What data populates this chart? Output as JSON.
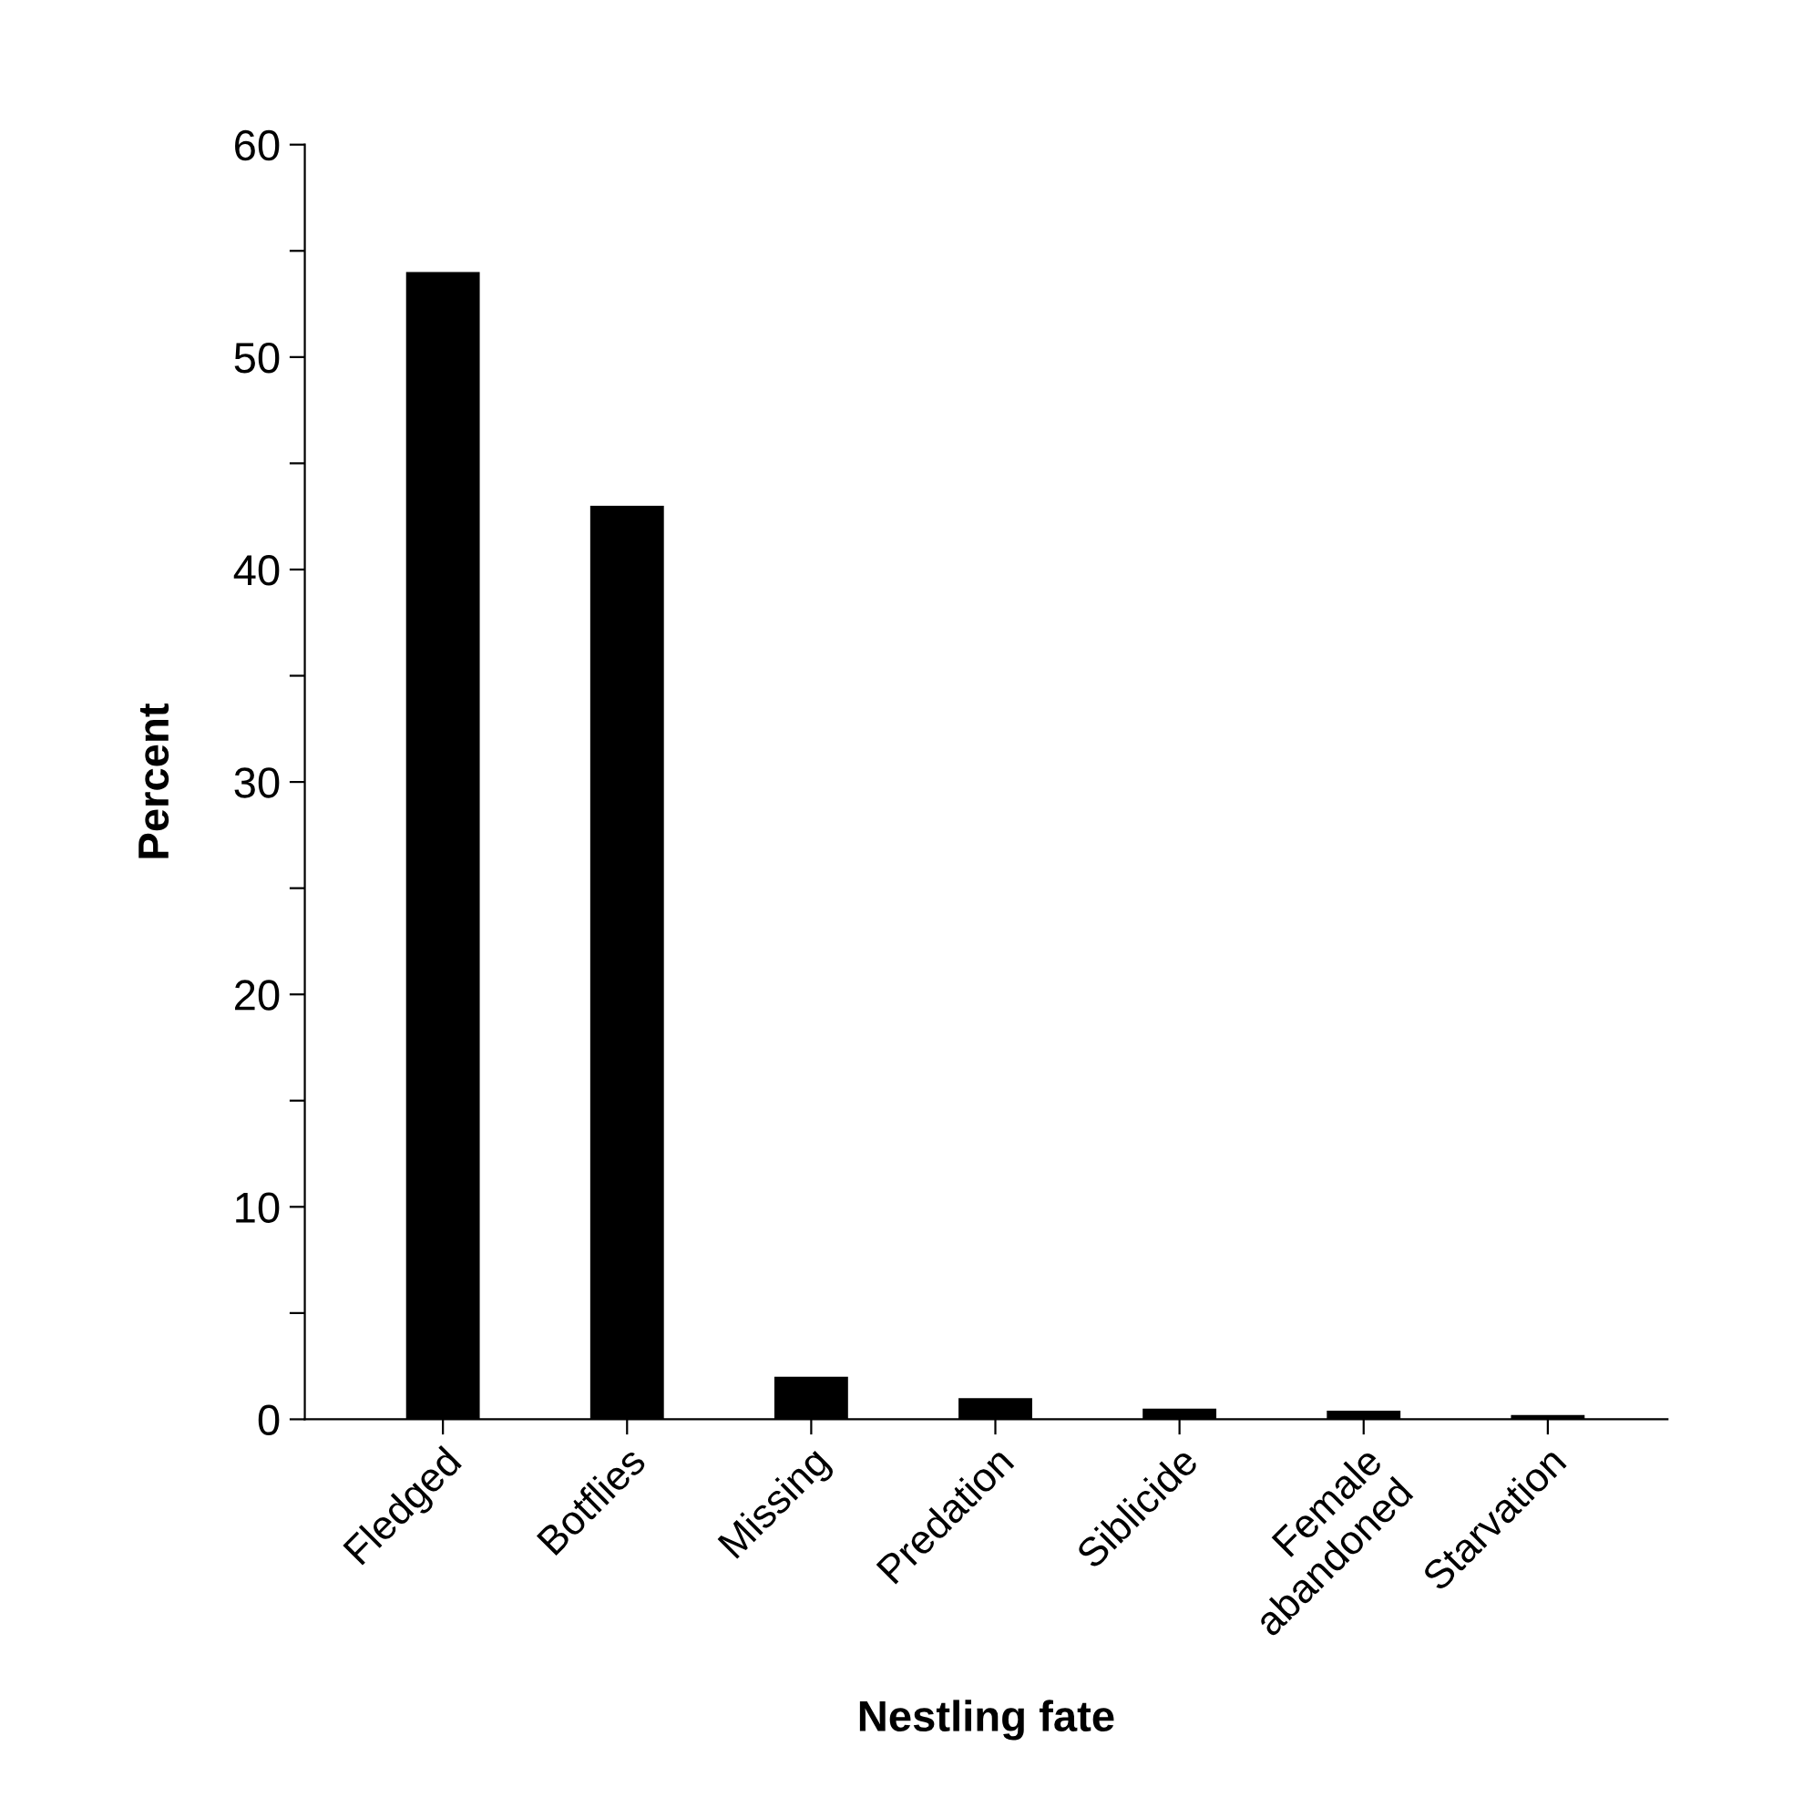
{
  "chart_data": {
    "type": "bar",
    "xlabel": "Nestling fate",
    "ylabel": "Percent",
    "categories": [
      "Fledged",
      "Botflies",
      "Missing",
      "Predation",
      "Siblicide",
      "Female\nabandoned",
      "Starvation"
    ],
    "values": [
      54,
      43,
      2,
      1,
      0.5,
      0.4,
      0.2
    ],
    "color": "#000000",
    "ylim": [
      0,
      60
    ],
    "yticks": [
      0,
      {
        "value": 5,
        "label": null
      },
      10,
      {
        "value": 15,
        "label": null
      },
      20,
      {
        "value": 25,
        "label": null
      },
      30,
      {
        "value": 35,
        "label": null
      },
      40,
      {
        "value": 45,
        "label": null
      },
      50,
      {
        "value": 55,
        "label": null
      },
      60
    ],
    "grid": false
  }
}
